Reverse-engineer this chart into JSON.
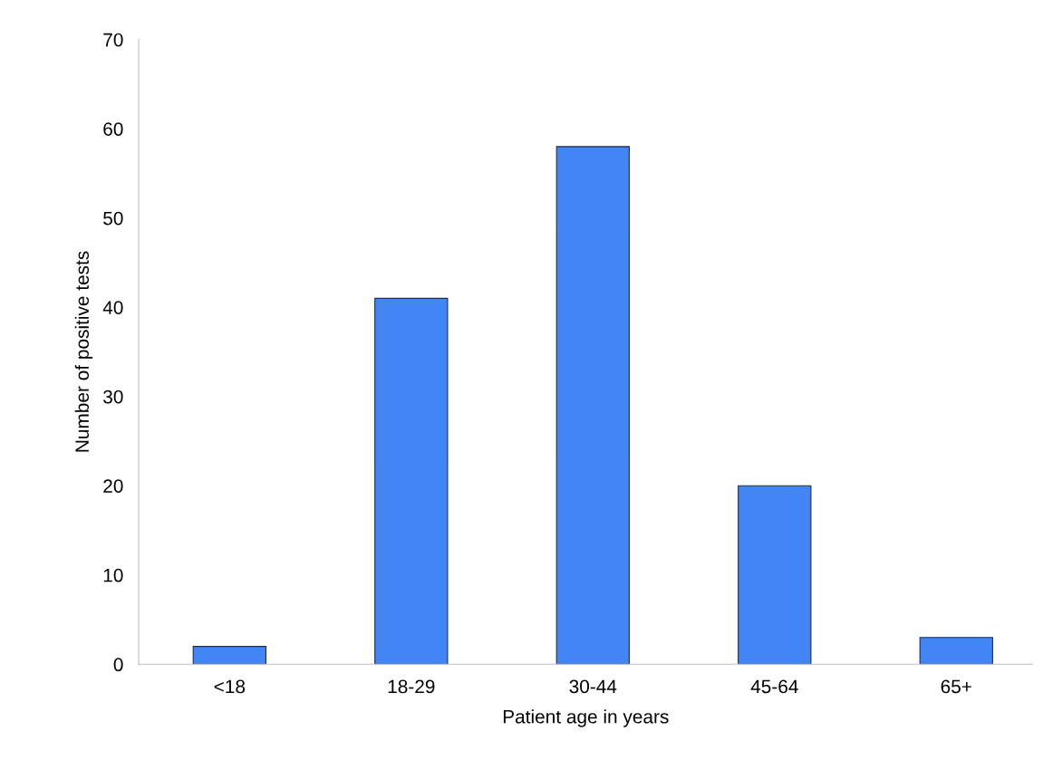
{
  "chart_data": {
    "type": "bar",
    "xlabel": "Patient age in years",
    "ylabel": "Number of positive tests",
    "categories": [
      "<18",
      "18-29",
      "30-44",
      "45-64",
      "65+"
    ],
    "values": [
      2,
      41,
      58,
      20,
      3
    ],
    "color": "#4285f4",
    "ylim": [
      0,
      70
    ],
    "yticks": [
      0,
      10,
      20,
      30,
      40,
      50,
      60,
      70
    ],
    "grid": false,
    "legend": false
  }
}
